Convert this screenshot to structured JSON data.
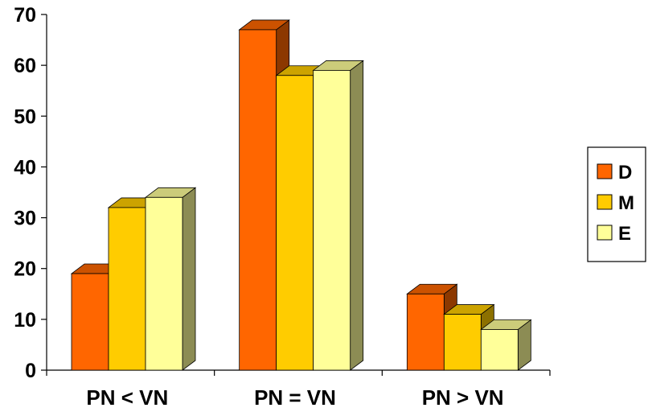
{
  "chart_data": {
    "type": "bar",
    "categories": [
      "PN < VN",
      "PN = VN",
      "PN > VN"
    ],
    "series": [
      {
        "name": "D",
        "values": [
          19,
          67,
          15
        ],
        "color": "#FF6600"
      },
      {
        "name": "M",
        "values": [
          32,
          58,
          11
        ],
        "color": "#FFCC00"
      },
      {
        "name": "E",
        "values": [
          34,
          59,
          8
        ],
        "color": "#FFFF99"
      }
    ],
    "ylim": [
      0,
      70
    ],
    "yticks": [
      "0",
      "10",
      "20",
      "30",
      "40",
      "50",
      "60",
      "70"
    ],
    "title": "",
    "xlabel": "",
    "ylabel": "",
    "grid": false,
    "style": "3d-bar",
    "legend_position": "right"
  }
}
